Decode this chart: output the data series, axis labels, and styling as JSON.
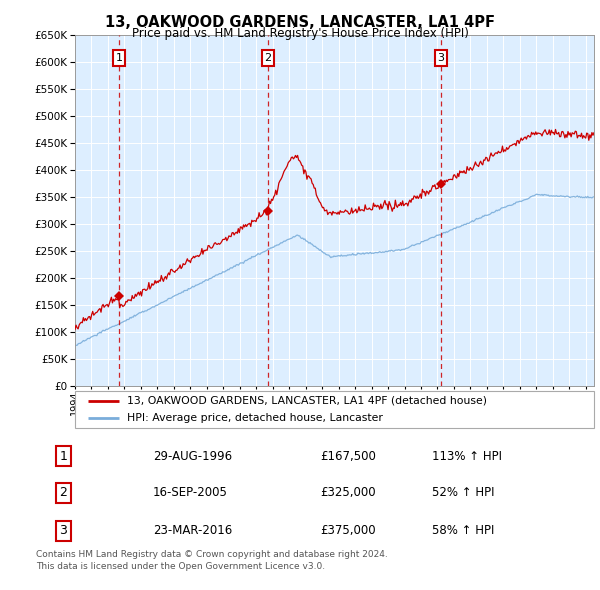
{
  "title": "13, OAKWOOD GARDENS, LANCASTER, LA1 4PF",
  "subtitle": "Price paid vs. HM Land Registry's House Price Index (HPI)",
  "sales": [
    {
      "label": "1",
      "date_float": 1996.662,
      "price": 167500
    },
    {
      "label": "2",
      "date_float": 2005.71,
      "price": 325000
    },
    {
      "label": "3",
      "date_float": 2016.224,
      "price": 375000
    }
  ],
  "legend_line1": "13, OAKWOOD GARDENS, LANCASTER, LA1 4PF (detached house)",
  "legend_line2": "HPI: Average price, detached house, Lancaster",
  "footer1": "Contains HM Land Registry data © Crown copyright and database right 2024.",
  "footer2": "This data is licensed under the Open Government Licence v3.0.",
  "table_rows": [
    [
      "1",
      "29-AUG-1996",
      "£167,500",
      "113% ↑ HPI"
    ],
    [
      "2",
      "16-SEP-2005",
      "£325,000",
      "52% ↑ HPI"
    ],
    [
      "3",
      "23-MAR-2016",
      "£375,000",
      "58% ↑ HPI"
    ]
  ],
  "ylim": [
    0,
    650000
  ],
  "xlim_start": 1994.0,
  "xlim_end": 2025.5,
  "red_color": "#cc0000",
  "blue_color": "#7aadda",
  "bg_color": "#ddeeff",
  "grid_color": "#ffffff",
  "seed": 12345
}
